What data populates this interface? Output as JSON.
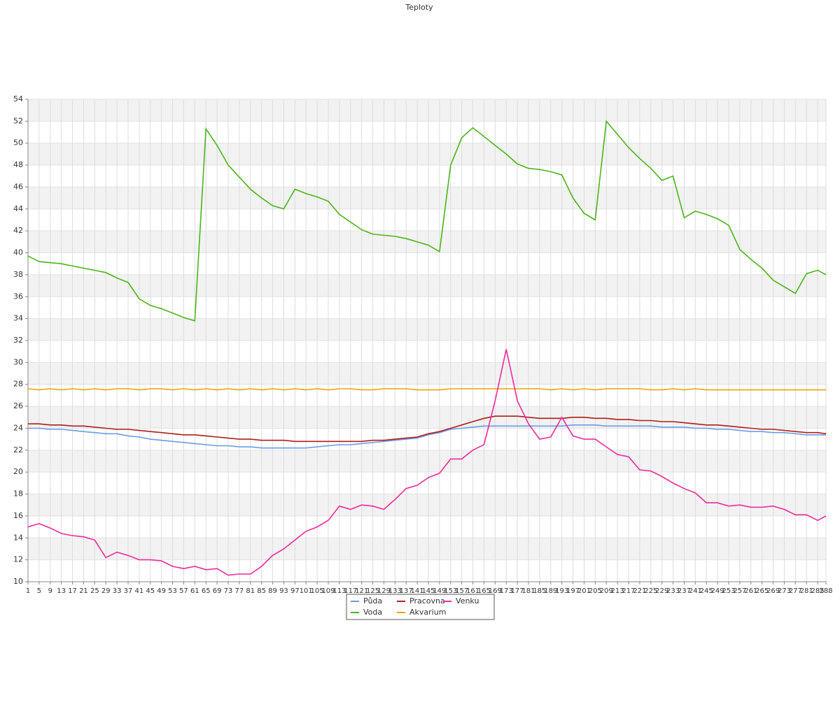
{
  "chart_data": {
    "type": "line",
    "title": "Teploty",
    "x": [
      1,
      5,
      9,
      13,
      17,
      21,
      25,
      29,
      33,
      37,
      41,
      45,
      49,
      53,
      57,
      61,
      65,
      69,
      73,
      77,
      81,
      85,
      89,
      93,
      97,
      101,
      105,
      109,
      113,
      117,
      121,
      125,
      129,
      133,
      137,
      141,
      145,
      149,
      153,
      157,
      161,
      165,
      169,
      173,
      177,
      181,
      185,
      189,
      193,
      197,
      201,
      205,
      209,
      213,
      217,
      221,
      225,
      229,
      233,
      237,
      241,
      245,
      249,
      253,
      257,
      261,
      265,
      269,
      273,
      277,
      281,
      285,
      288
    ],
    "xlim": [
      1,
      288
    ],
    "ylim": [
      10,
      54
    ],
    "yticks": [
      10,
      12,
      14,
      16,
      18,
      20,
      22,
      24,
      26,
      28,
      30,
      32,
      34,
      36,
      38,
      40,
      42,
      44,
      46,
      48,
      50,
      52,
      54
    ],
    "grid": true,
    "legend": "bottom",
    "series": [
      {
        "name": "Půda",
        "color": "#6b9be8",
        "values": [
          24.0,
          24.0,
          23.9,
          23.9,
          23.8,
          23.7,
          23.6,
          23.5,
          23.5,
          23.3,
          23.2,
          23.0,
          22.9,
          22.8,
          22.7,
          22.6,
          22.5,
          22.4,
          22.4,
          22.3,
          22.3,
          22.2,
          22.2,
          22.2,
          22.2,
          22.2,
          22.3,
          22.4,
          22.5,
          22.5,
          22.6,
          22.7,
          22.8,
          22.9,
          23.0,
          23.1,
          23.4,
          23.6,
          23.9,
          24.0,
          24.1,
          24.2,
          24.2,
          24.2,
          24.2,
          24.2,
          24.2,
          24.2,
          24.2,
          24.3,
          24.3,
          24.3,
          24.2,
          24.2,
          24.2,
          24.2,
          24.2,
          24.1,
          24.1,
          24.1,
          24.0,
          24.0,
          23.9,
          23.9,
          23.8,
          23.7,
          23.7,
          23.6,
          23.6,
          23.5,
          23.4,
          23.4,
          23.4
        ]
      },
      {
        "name": "Voda",
        "color": "#4db41c",
        "values": [
          39.7,
          39.2,
          39.1,
          39.0,
          38.8,
          38.6,
          38.4,
          38.2,
          37.7,
          37.3,
          35.8,
          35.2,
          34.9,
          34.5,
          34.1,
          33.8,
          51.3,
          49.8,
          48.0,
          46.9,
          45.8,
          45.0,
          44.3,
          44.0,
          45.8,
          45.4,
          45.1,
          44.7,
          43.5,
          42.8,
          42.1,
          41.7,
          41.6,
          41.5,
          41.3,
          41.0,
          40.7,
          40.1,
          48.0,
          50.5,
          51.4,
          50.6,
          49.8,
          49.0,
          48.1,
          47.7,
          47.6,
          47.4,
          47.1,
          45.0,
          43.6,
          43.0,
          52.0,
          50.8,
          49.6,
          48.6,
          47.7,
          46.6,
          47.0,
          43.2,
          43.8,
          43.5,
          43.1,
          42.5,
          40.3,
          39.4,
          38.6,
          37.5,
          36.9,
          36.3,
          38.1,
          38.4,
          38.0
        ]
      },
      {
        "name": "Pracovna",
        "color": "#b01c1c",
        "values": [
          24.4,
          24.4,
          24.3,
          24.3,
          24.2,
          24.2,
          24.1,
          24.0,
          23.9,
          23.9,
          23.8,
          23.7,
          23.6,
          23.5,
          23.4,
          23.4,
          23.3,
          23.2,
          23.1,
          23.0,
          23.0,
          22.9,
          22.9,
          22.9,
          22.8,
          22.8,
          22.8,
          22.8,
          22.8,
          22.8,
          22.8,
          22.9,
          22.9,
          23.0,
          23.1,
          23.2,
          23.5,
          23.7,
          24.0,
          24.3,
          24.6,
          24.9,
          25.1,
          25.1,
          25.1,
          25.0,
          24.9,
          24.9,
          24.9,
          25.0,
          25.0,
          24.9,
          24.9,
          24.8,
          24.8,
          24.7,
          24.7,
          24.6,
          24.6,
          24.5,
          24.4,
          24.3,
          24.3,
          24.2,
          24.1,
          24.0,
          23.9,
          23.9,
          23.8,
          23.7,
          23.6,
          23.6,
          23.5
        ]
      },
      {
        "name": "Akvarium",
        "color": "#f2a20c",
        "values": [
          27.6,
          27.5,
          27.6,
          27.5,
          27.6,
          27.5,
          27.6,
          27.5,
          27.6,
          27.6,
          27.5,
          27.6,
          27.6,
          27.5,
          27.6,
          27.5,
          27.6,
          27.5,
          27.6,
          27.5,
          27.6,
          27.5,
          27.6,
          27.5,
          27.6,
          27.5,
          27.6,
          27.5,
          27.6,
          27.6,
          27.5,
          27.5,
          27.6,
          27.6,
          27.6,
          27.5,
          27.5,
          27.5,
          27.6,
          27.6,
          27.6,
          27.6,
          27.6,
          27.6,
          27.6,
          27.6,
          27.6,
          27.5,
          27.6,
          27.5,
          27.6,
          27.5,
          27.6,
          27.6,
          27.6,
          27.6,
          27.5,
          27.5,
          27.6,
          27.5,
          27.6,
          27.5,
          27.5,
          27.5,
          27.5,
          27.5,
          27.5,
          27.5,
          27.5,
          27.5,
          27.5,
          27.5,
          27.5
        ]
      },
      {
        "name": "Venku",
        "color": "#ee2a9c",
        "values": [
          15.0,
          15.3,
          14.9,
          14.4,
          14.2,
          14.1,
          13.8,
          12.2,
          12.7,
          12.4,
          12.0,
          12.0,
          11.9,
          11.4,
          11.2,
          11.4,
          11.1,
          11.2,
          10.6,
          10.7,
          10.7,
          11.4,
          12.4,
          13.0,
          13.8,
          14.6,
          15.0,
          15.6,
          16.9,
          16.6,
          17.0,
          16.9,
          16.6,
          17.5,
          18.5,
          18.8,
          19.5,
          19.9,
          21.2,
          21.2,
          22.0,
          22.5,
          26.5,
          31.2,
          26.5,
          24.4,
          23.0,
          23.2,
          25.0,
          23.3,
          23.0,
          23.0,
          22.3,
          21.6,
          21.4,
          20.2,
          20.1,
          19.6,
          19.0,
          18.5,
          18.1,
          17.2,
          17.2,
          16.9,
          17.0,
          16.8,
          16.8,
          16.9,
          16.6,
          16.1,
          16.1,
          15.6,
          16.0
        ]
      }
    ]
  }
}
